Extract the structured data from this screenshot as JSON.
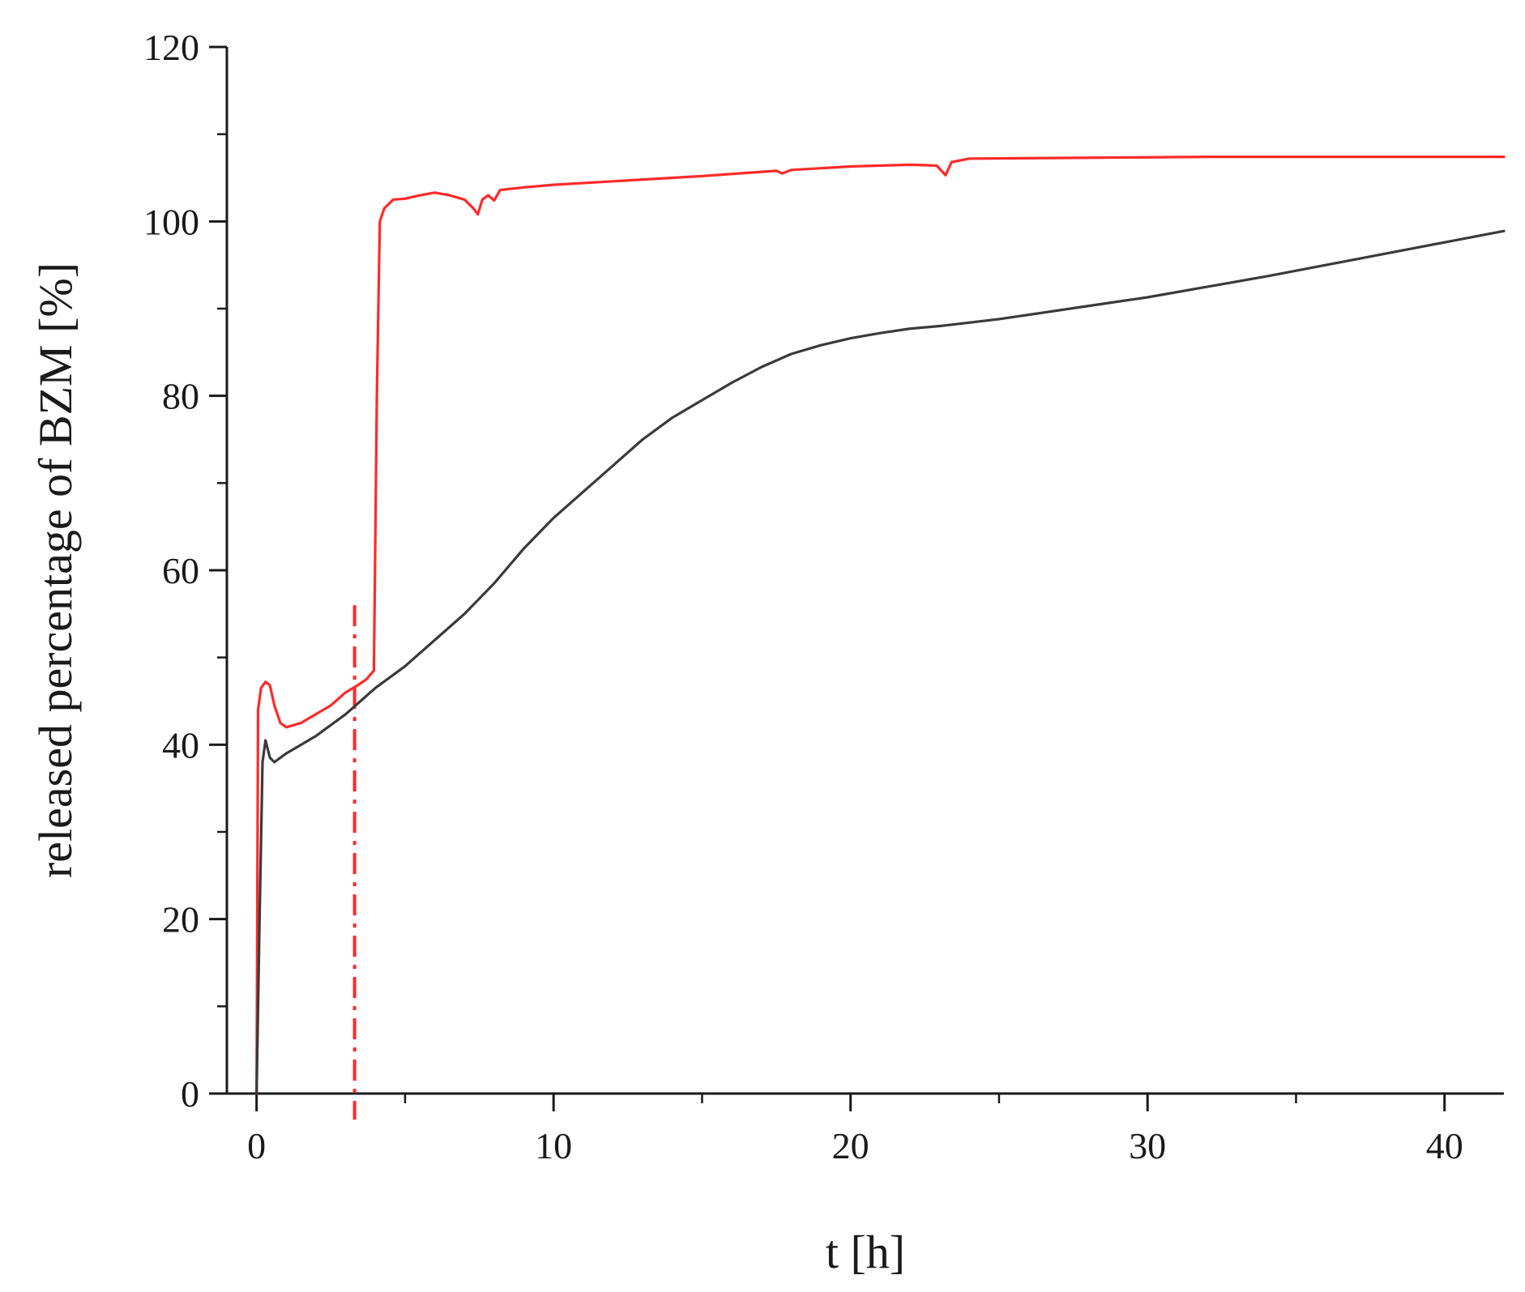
{
  "chart_data": {
    "type": "line",
    "xlabel": "t [h]",
    "ylabel": "released percentage of BZM [%]",
    "xlim": [
      -1,
      42
    ],
    "ylim": [
      0,
      120
    ],
    "x_ticks": [
      0,
      10,
      20,
      30,
      40
    ],
    "x_minor_ticks": [
      5,
      15,
      25,
      35
    ],
    "y_ticks": [
      0,
      20,
      40,
      60,
      80,
      100,
      120
    ],
    "y_minor_ticks": [
      10,
      30,
      50,
      70,
      90,
      110
    ],
    "grid": false,
    "legend": "none",
    "series": [
      {
        "color": "#ff2a2a",
        "points": [
          [
            0,
            0
          ],
          [
            0.05,
            44
          ],
          [
            0.15,
            46.5
          ],
          [
            0.3,
            47.2
          ],
          [
            0.45,
            46.8
          ],
          [
            0.6,
            44.5
          ],
          [
            0.8,
            42.5
          ],
          [
            1.0,
            42
          ],
          [
            1.5,
            42.5
          ],
          [
            2.0,
            43.5
          ],
          [
            2.5,
            44.5
          ],
          [
            3.0,
            46
          ],
          [
            3.4,
            46.8
          ],
          [
            3.7,
            47.5
          ],
          [
            3.95,
            48.5
          ],
          [
            4.05,
            80
          ],
          [
            4.15,
            100
          ],
          [
            4.3,
            101.5
          ],
          [
            4.6,
            102.5
          ],
          [
            5.0,
            102.6
          ],
          [
            5.5,
            103
          ],
          [
            6.0,
            103.3
          ],
          [
            6.5,
            103
          ],
          [
            7.0,
            102.5
          ],
          [
            7.3,
            101.5
          ],
          [
            7.45,
            100.8
          ],
          [
            7.6,
            102.5
          ],
          [
            7.8,
            103
          ],
          [
            8.0,
            102.4
          ],
          [
            8.2,
            103.6
          ],
          [
            9.0,
            103.9
          ],
          [
            10.0,
            104.2
          ],
          [
            12.0,
            104.6
          ],
          [
            15.0,
            105.2
          ],
          [
            17.5,
            105.8
          ],
          [
            17.7,
            105.5
          ],
          [
            18.0,
            105.9
          ],
          [
            20.0,
            106.3
          ],
          [
            22.0,
            106.5
          ],
          [
            22.9,
            106.4
          ],
          [
            23.2,
            105.3
          ],
          [
            23.4,
            106.8
          ],
          [
            24.0,
            107.2
          ],
          [
            28.0,
            107.3
          ],
          [
            32.0,
            107.4
          ],
          [
            36.0,
            107.4
          ],
          [
            42.0,
            107.4
          ]
        ]
      },
      {
        "color": "#3a3a3a",
        "points": [
          [
            0,
            0
          ],
          [
            0.1,
            20
          ],
          [
            0.2,
            38
          ],
          [
            0.3,
            40.5
          ],
          [
            0.45,
            38.5
          ],
          [
            0.6,
            38
          ],
          [
            1.0,
            39
          ],
          [
            2.0,
            41
          ],
          [
            3.0,
            43.5
          ],
          [
            3.5,
            45
          ],
          [
            4.0,
            46.5
          ],
          [
            5.0,
            49
          ],
          [
            6.0,
            52
          ],
          [
            7.0,
            55
          ],
          [
            8.0,
            58.5
          ],
          [
            9.0,
            62.5
          ],
          [
            10.0,
            66
          ],
          [
            11.0,
            69
          ],
          [
            12.0,
            72
          ],
          [
            13.0,
            75
          ],
          [
            14.0,
            77.5
          ],
          [
            15.0,
            79.5
          ],
          [
            16.0,
            81.5
          ],
          [
            17.0,
            83.3
          ],
          [
            18.0,
            84.8
          ],
          [
            19.0,
            85.8
          ],
          [
            20.0,
            86.6
          ],
          [
            21.0,
            87.2
          ],
          [
            22.0,
            87.7
          ],
          [
            23.0,
            88.0
          ],
          [
            25.0,
            88.8
          ],
          [
            28.0,
            90.3
          ],
          [
            30.0,
            91.3
          ],
          [
            32.0,
            92.5
          ],
          [
            34.0,
            93.7
          ],
          [
            36.0,
            95.0
          ],
          [
            38.0,
            96.3
          ],
          [
            40.0,
            97.6
          ],
          [
            42.0,
            98.9
          ]
        ]
      }
    ],
    "annotations": [
      {
        "type": "vertical-line",
        "style": "dash-dot",
        "color": "#ff2a2a",
        "x": 3.3,
        "y_range": [
          -3,
          56
        ]
      }
    ]
  }
}
